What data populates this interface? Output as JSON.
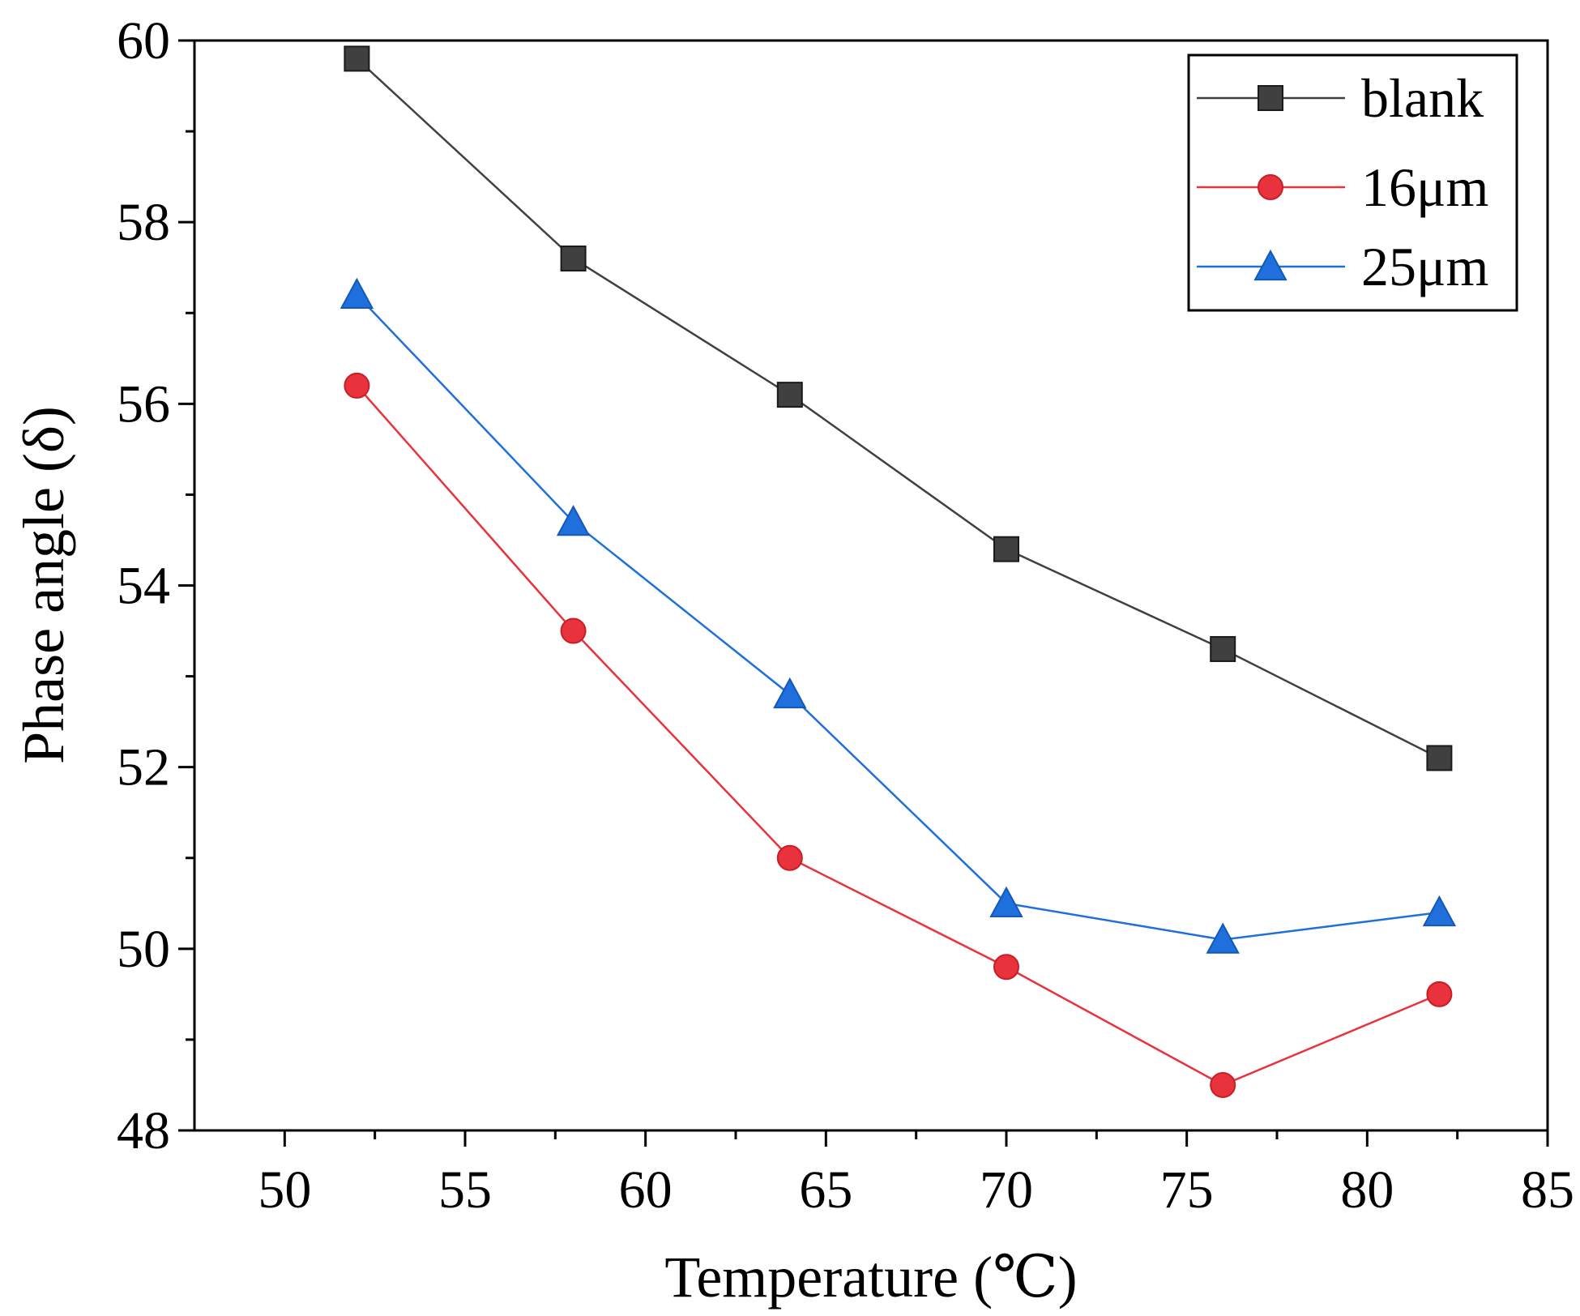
{
  "chart_data": {
    "type": "line",
    "title": "",
    "xlabel": "Temperature (℃)",
    "ylabel": "Phase angle (δ)",
    "xlim": [
      47.5,
      85
    ],
    "ylim": [
      48,
      60
    ],
    "xticks": [
      50,
      55,
      60,
      65,
      70,
      75,
      80,
      85
    ],
    "yticks": [
      48,
      50,
      52,
      54,
      56,
      58,
      60
    ],
    "x": [
      52,
      58,
      64,
      70,
      76,
      82
    ],
    "legend_position": "top-right",
    "series": [
      {
        "name": "blank",
        "values": [
          59.8,
          57.6,
          56.1,
          54.4,
          53.3,
          52.1
        ],
        "color": "#404040",
        "marker": "square"
      },
      {
        "name": "16μm",
        "values": [
          56.2,
          53.5,
          51.0,
          49.8,
          48.5,
          49.5
        ],
        "color": "#e8323c",
        "marker": "circle"
      },
      {
        "name": "25μm",
        "values": [
          57.2,
          54.7,
          52.8,
          50.5,
          50.1,
          50.4
        ],
        "color": "#1f6fdc",
        "marker": "triangle"
      }
    ]
  }
}
